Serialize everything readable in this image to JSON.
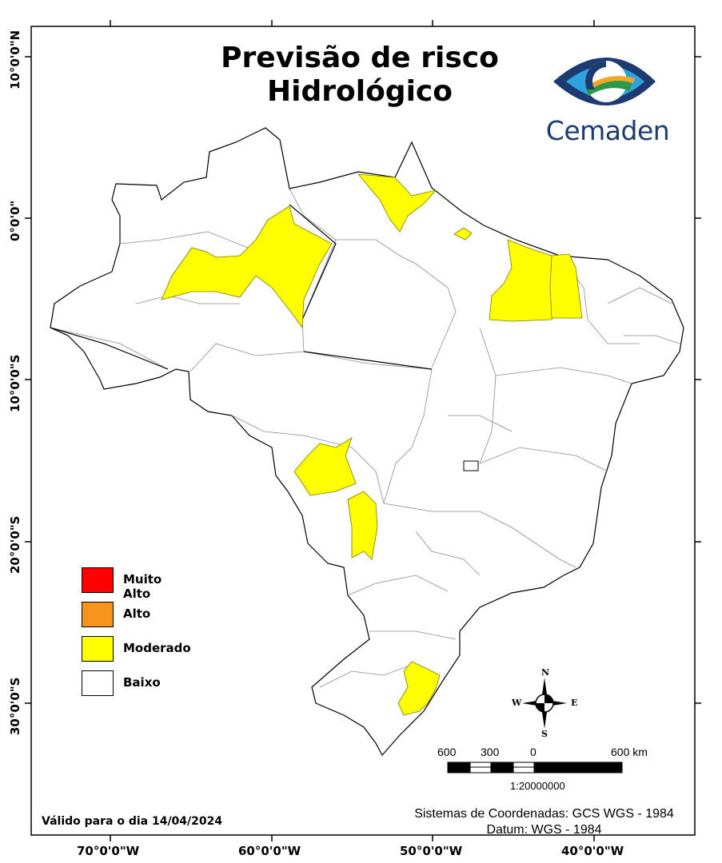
{
  "title": {
    "line1": "Previsão de risco",
    "line2": "Hidrológico"
  },
  "logo": {
    "text": "Cemaden"
  },
  "legend": {
    "items": [
      {
        "label": "Muito Alto",
        "color": "#ff0000"
      },
      {
        "label": "Alto",
        "color": "#f7941d"
      },
      {
        "label": "Moderado",
        "color": "#ffff00"
      },
      {
        "label": "Baixo",
        "color": "#ffffff"
      }
    ]
  },
  "axes": {
    "longitudes": [
      "70°0'0\"W",
      "60°0'0\"W",
      "50°0'0\"W",
      "40°0'0\"W"
    ],
    "latitudes": [
      "10°0'0\"N",
      "0°0'0\"",
      "10°0'0\"S",
      "20°0'0\"S",
      "30°0'0\"S"
    ]
  },
  "compass": {
    "n": "N",
    "s": "S",
    "e": "E",
    "w": "W"
  },
  "scale_bar": {
    "labels": [
      "600",
      "300",
      "0",
      "600 km"
    ],
    "ratio": "1:20000000"
  },
  "footer": {
    "validity": "Válido para o dia 14/04/2024",
    "crs": "Sistemas de Coordenadas: GCS WGS - 1984",
    "datum": "Datum: WGS - 1984"
  },
  "colors": {
    "map_outline": "#000000",
    "boundary_lines": "#8c8c8c",
    "moderate_fill": "#ffff00"
  }
}
